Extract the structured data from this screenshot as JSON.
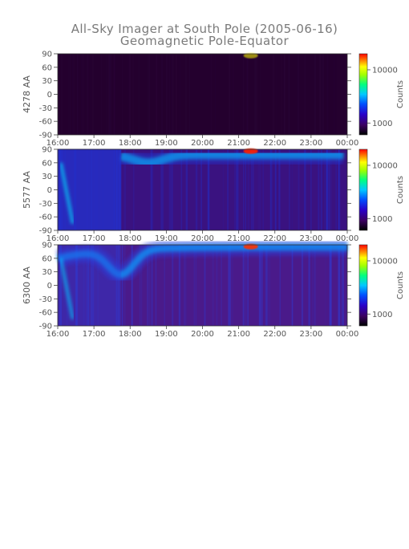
{
  "title_line1": "All-Sky Imager at South Pole (2005-06-16)",
  "title_line2": "Geomagnetic Pole-Equator",
  "colorbar": {
    "label": "Counts",
    "ticks": [
      {
        "label": "10000",
        "value": 10000
      },
      {
        "label": "1000",
        "value": 1000
      }
    ],
    "range": [
      600,
      20000
    ],
    "scale": "log",
    "colormap": [
      "#000000",
      "#3b0060",
      "#2a00c8",
      "#0050ff",
      "#00c8ff",
      "#00ff80",
      "#a0ff00",
      "#ffff00",
      "#ff8000",
      "#ff0000"
    ]
  },
  "chart_data": [
    {
      "type": "heatmap",
      "ylabel": "4278 AA",
      "x_ticks": [
        "16:00",
        "17:00",
        "18:00",
        "19:00",
        "20:00",
        "21:00",
        "22:00",
        "23:00",
        "00:00"
      ],
      "y_ticks": [
        90,
        60,
        30,
        0,
        -30,
        -60,
        -90
      ],
      "xlim": [
        "16:00",
        "00:00"
      ],
      "ylim": [
        -90,
        90
      ],
      "bright_band": "faint",
      "colors": {
        "background": "#24002e",
        "mid": "#2f0a40",
        "bright": "#5a0070",
        "hot": "#ffff00"
      }
    },
    {
      "type": "heatmap",
      "ylabel": "5577 AA",
      "x_ticks": [
        "16:00",
        "17:00",
        "18:00",
        "19:00",
        "20:00",
        "21:00",
        "22:00",
        "23:00",
        "00:00"
      ],
      "y_ticks": [
        90,
        60,
        30,
        0,
        -30,
        -60,
        -90
      ],
      "xlim": [
        "16:00",
        "00:00"
      ],
      "ylim": [
        -90,
        90
      ],
      "bright_band": "strong",
      "colors": {
        "background": "#3a1280",
        "mid": "#2030d0",
        "bright": "#00e0ff",
        "hot": "#ff2000"
      }
    },
    {
      "type": "heatmap",
      "ylabel": "6300 AA",
      "x_ticks": [
        "16:00",
        "17:00",
        "18:00",
        "19:00",
        "20:00",
        "21:00",
        "22:00",
        "23:00",
        "00:00"
      ],
      "y_ticks": [
        90,
        60,
        30,
        0,
        -30,
        -60,
        -90
      ],
      "xlim": [
        "16:00",
        "00:00"
      ],
      "ylim": [
        -90,
        90
      ],
      "bright_band": "medium",
      "colors": {
        "background": "#4a1a8a",
        "mid": "#2a40e0",
        "bright": "#00c8ff",
        "hot": "#ff3000"
      }
    }
  ]
}
